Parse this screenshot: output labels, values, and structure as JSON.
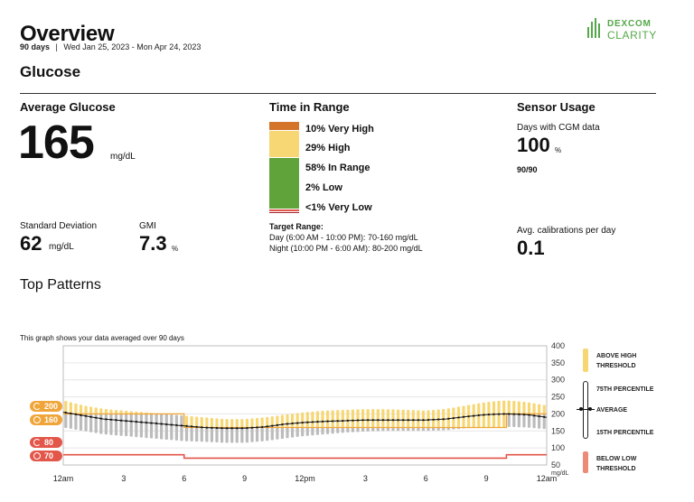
{
  "header": {
    "title": "Overview",
    "period_days": "90 days",
    "separator": "|",
    "date_range": "Wed Jan 25, 2023 - Mon Apr 24, 2023",
    "logo_brand": "DEXCOM",
    "logo_product": "CLARITY",
    "brand_color": "#55a84a"
  },
  "glucose": {
    "section_title": "Glucose",
    "average": {
      "title": "Average Glucose",
      "value": "165",
      "unit": "mg/dL"
    },
    "std_dev": {
      "label": "Standard Deviation",
      "value": "62",
      "unit": "mg/dL"
    },
    "gmi": {
      "label": "GMI",
      "value": "7.3",
      "unit": "%"
    }
  },
  "time_in_range": {
    "title": "Time in Range",
    "segments": [
      {
        "label": "10% Very High",
        "percent": 10,
        "color": "#d4742b"
      },
      {
        "label": "29% High",
        "percent": 29,
        "color": "#f7d774"
      },
      {
        "label": "58% In Range",
        "percent": 58,
        "color": "#5fa33a"
      },
      {
        "label": "2% Low",
        "percent": 2,
        "color": "#e3564a"
      },
      {
        "label": "<1% Very Low",
        "percent": 1,
        "color": "#a3222a"
      }
    ],
    "target_title": "Target Range:",
    "target_day": "Day (6:00 AM - 10:00 PM): 70-160 mg/dL",
    "target_night": "Night (10:00 PM - 6:00 AM): 80-200 mg/dL"
  },
  "sensor_usage": {
    "title": "Sensor Usage",
    "days_label": "Days with CGM data",
    "days_percent": "100",
    "percent_unit": "%",
    "days_fraction": "90/90",
    "calibrations_label": "Avg. calibrations per day",
    "calibrations_value": "0.1"
  },
  "patterns": {
    "title": "Top Patterns",
    "caption": "This graph shows your data averaged over 90 days",
    "pills": {
      "night_high": "200",
      "day_high": "160",
      "night_low": "80",
      "day_low": "70"
    },
    "legend": {
      "above": "ABOVE HIGH THRESHOLD",
      "p75": "75TH PERCENTILE",
      "average": "AVERAGE",
      "p15": "15TH PERCENTILE",
      "below": "BELOW LOW THRESHOLD"
    }
  },
  "chart_data": {
    "type": "bar",
    "title": "",
    "xlabel": "",
    "ylabel": "mg/dL",
    "ylim": [
      50,
      400
    ],
    "y_ticks": [
      400,
      350,
      300,
      250,
      200,
      150,
      100,
      50
    ],
    "y_unit": "mg/dL",
    "x_ticks": [
      "12am",
      "3",
      "6",
      "9",
      "12pm",
      "3",
      "6",
      "9",
      "12am"
    ],
    "x_hours_range": [
      0,
      24
    ],
    "thresholds": {
      "high": [
        {
          "from_hour": 0,
          "to_hour": 6,
          "value": 200
        },
        {
          "from_hour": 6,
          "to_hour": 22,
          "value": 160
        },
        {
          "from_hour": 22,
          "to_hour": 24,
          "value": 200
        }
      ],
      "low": [
        {
          "from_hour": 0,
          "to_hour": 6,
          "value": 80
        },
        {
          "from_hour": 6,
          "to_hour": 22,
          "value": 70
        },
        {
          "from_hour": 22,
          "to_hour": 24,
          "value": 80
        }
      ]
    },
    "series": [
      {
        "name": "AVERAGE",
        "x_hours": [
          0,
          1,
          2,
          3,
          4,
          5,
          6,
          7,
          8,
          9,
          10,
          11,
          12,
          13,
          14,
          15,
          16,
          17,
          18,
          19,
          20,
          21,
          22,
          23,
          24
        ],
        "values": [
          205,
          195,
          185,
          180,
          175,
          170,
          165,
          160,
          158,
          158,
          162,
          170,
          175,
          178,
          180,
          182,
          182,
          182,
          182,
          185,
          192,
          198,
          200,
          198,
          190
        ]
      },
      {
        "name": "75TH PERCENTILE",
        "x_hours": [
          0,
          1,
          2,
          3,
          4,
          5,
          6,
          7,
          8,
          9,
          10,
          11,
          12,
          13,
          14,
          15,
          16,
          17,
          18,
          19,
          20,
          21,
          22,
          23,
          24
        ],
        "values": [
          240,
          225,
          215,
          210,
          205,
          200,
          195,
          190,
          185,
          185,
          190,
          198,
          205,
          210,
          212,
          214,
          214,
          212,
          210,
          215,
          225,
          235,
          240,
          235,
          225
        ]
      },
      {
        "name": "15TH PERCENTILE",
        "x_hours": [
          0,
          1,
          2,
          3,
          4,
          5,
          6,
          7,
          8,
          9,
          10,
          11,
          12,
          13,
          14,
          15,
          16,
          17,
          18,
          19,
          20,
          21,
          22,
          23,
          24
        ],
        "values": [
          160,
          150,
          140,
          135,
          130,
          125,
          120,
          118,
          115,
          115,
          120,
          128,
          135,
          140,
          145,
          148,
          150,
          150,
          150,
          152,
          158,
          162,
          162,
          160,
          155
        ]
      }
    ],
    "grid": true,
    "legend_position": "right"
  }
}
